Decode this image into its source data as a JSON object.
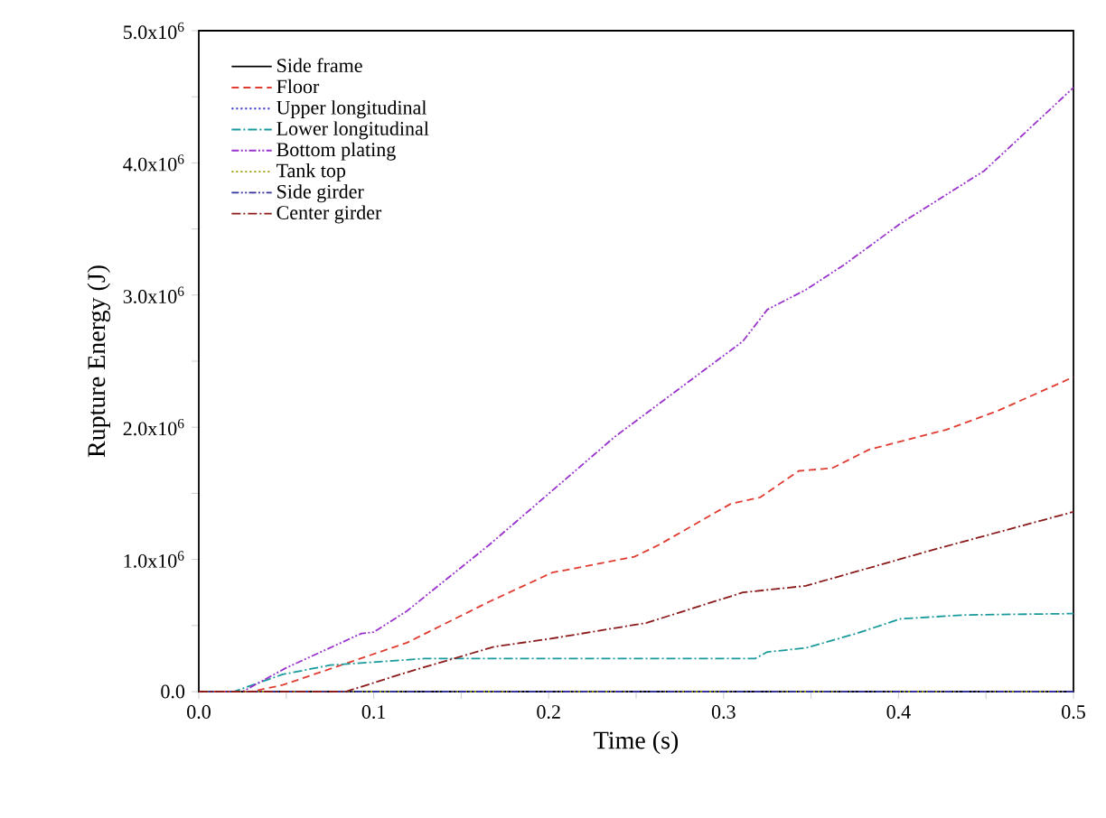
{
  "chart_data": {
    "type": "line",
    "xlabel": "Time (s)",
    "ylabel": "Rupture Energy (J)",
    "xlim": [
      0,
      0.5
    ],
    "ylim": [
      0,
      5000000
    ],
    "xticks": [
      {
        "value": 0,
        "label": "0.0"
      },
      {
        "value": 0.05,
        "label": null
      },
      0.1,
      {
        "value": 0.15,
        "label": null
      },
      0.2,
      {
        "value": 0.25,
        "label": null
      },
      0.3,
      {
        "value": 0.35,
        "label": null
      },
      0.4,
      {
        "value": 0.45,
        "label": null
      },
      0.5
    ],
    "yticks": [
      {
        "value": 0,
        "label": "0.0"
      },
      {
        "value": 500000,
        "label": null
      },
      {
        "value": 1000000,
        "label": "1.0x10$^{6}$"
      },
      {
        "value": 1500000,
        "label": null
      },
      {
        "value": 2000000,
        "label": "2.0x10$^{6}$"
      },
      {
        "value": 2500000,
        "label": null
      },
      {
        "value": 3000000,
        "label": "3.0x10$^{6}$"
      },
      {
        "value": 3500000,
        "label": null
      },
      {
        "value": 4000000,
        "label": "4.0x10$^{6}$"
      },
      {
        "value": 4500000,
        "label": null
      },
      {
        "value": 5000000,
        "label": "5.0x10$^{6}$"
      }
    ],
    "legend": "top left",
    "grid": false,
    "marker": "none",
    "series": [
      {
        "name": "Side frame",
        "color": "#000000",
        "line_style": "solid",
        "values": [
          null
        ]
      },
      {
        "name": "Floor",
        "color": "#e03c31",
        "line_style": "dashed",
        "x": [
          0,
          0.03,
          0.048,
          0.119,
          0.166,
          0.202,
          0.249,
          0.263,
          0.304,
          0.321,
          0.343,
          0.362,
          0.383,
          0.427,
          0.456,
          0.5
        ],
        "values": [
          0,
          0,
          50000,
          370000,
          680000,
          900000,
          1020000,
          1110000,
          1420000,
          1470000,
          1670000,
          1690000,
          1830000,
          1980000,
          2120000,
          2380000
        ]
      },
      {
        "name": "Upper longitudinal",
        "color": "#3333cc",
        "line_style": "dotted",
        "values": [
          null
        ]
      },
      {
        "name": "Lower longitudinal",
        "color": "#1a9a9a",
        "line_style": "dashdot",
        "x": [
          0,
          0.02,
          0.048,
          0.075,
          0.129,
          0.318,
          0.325,
          0.347,
          0.376,
          0.401,
          0.438,
          0.5
        ],
        "values": [
          0,
          0,
          130000,
          200000,
          250000,
          250000,
          300000,
          330000,
          440000,
          550000,
          580000,
          590000
        ]
      },
      {
        "name": "Bottom plating",
        "color": "#9933cc",
        "line_style": "dashdotdot",
        "x": [
          0,
          0.025,
          0.05,
          0.093,
          0.1,
          0.119,
          0.166,
          0.238,
          0.311,
          0.325,
          0.347,
          0.369,
          0.401,
          0.449,
          0.5
        ],
        "values": [
          0,
          0,
          180000,
          440000,
          450000,
          610000,
          1110000,
          1930000,
          2650000,
          2890000,
          3040000,
          3230000,
          3540000,
          3940000,
          4570000
        ]
      },
      {
        "name": "Tank top",
        "color": "#999900",
        "line_style": "dotted",
        "x": [
          0,
          0.5
        ],
        "values": [
          0,
          0
        ]
      },
      {
        "name": "Side girder",
        "color": "#333399",
        "line_style": "dashdotdot",
        "x": [
          0,
          0.5
        ],
        "values": [
          0,
          0
        ]
      },
      {
        "name": "Center girder",
        "color": "#8b1a1a",
        "line_style": "dashdot",
        "x": [
          0,
          0.084,
          0.12,
          0.169,
          0.201,
          0.256,
          0.311,
          0.347,
          0.419,
          0.5
        ],
        "values": [
          0,
          0,
          150000,
          340000,
          400000,
          520000,
          750000,
          800000,
          1070000,
          1360000
        ]
      }
    ]
  }
}
